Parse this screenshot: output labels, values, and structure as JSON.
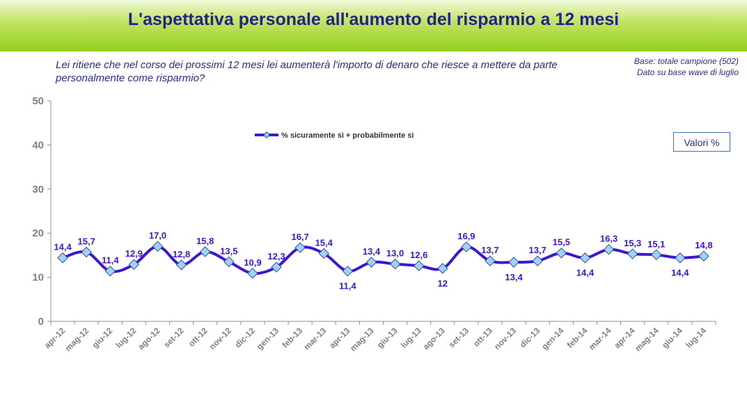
{
  "header": {
    "title": "L'aspettativa personale all'aumento del risparmio a 12 mesi"
  },
  "question": "Lei ritiene che nel corso dei prossimi 12 mesi lei aumenterà l'importo di denaro che riesce a mettere da parte personalmente come risparmio?",
  "base": {
    "line1": "Base: totale campione (502)",
    "line2": "Dato su base wave di luglio"
  },
  "valori_label": "Valori %",
  "colors": {
    "line": "#3a16d6",
    "marker_fill": "#9fd3f5",
    "marker_stroke": "#2d4f9e",
    "header_green": "#96cf1d",
    "title_blue": "#26218f"
  },
  "chart_data": {
    "type": "line",
    "ylim": [
      0,
      50
    ],
    "yticks": [
      "0",
      "10",
      "20",
      "30",
      "40",
      "50"
    ],
    "grid": false,
    "legend_position": "top-center",
    "categories": [
      "apr-12",
      "mag-12",
      "giu-12",
      "lug-12",
      "ago-12",
      "set-12",
      "ott-12",
      "nov-12",
      "dic-12",
      "gen-13",
      "feb-13",
      "mar-13",
      "apr-13",
      "mag-13",
      "giu-13",
      "lug-13",
      "ago-13",
      "set-13",
      "ott-13",
      "nov-13",
      "dic-13",
      "gen-14",
      "feb-14",
      "mar-14",
      "apr-14",
      "mag-14",
      "giu-14",
      "lug-14"
    ],
    "series": [
      {
        "name": "% sicuramente sì + probabilmente sì",
        "values": [
          14.4,
          15.7,
          11.4,
          12.9,
          17.0,
          12.8,
          15.8,
          13.5,
          10.9,
          12.3,
          16.7,
          15.4,
          11.4,
          13.4,
          13.0,
          12.6,
          12.0,
          16.9,
          13.7,
          13.4,
          13.7,
          15.5,
          14.4,
          16.3,
          15.3,
          15.1,
          14.4,
          14.8
        ],
        "labels": [
          "14,4",
          "15,7",
          "11,4",
          "12,9",
          "17,0",
          "12,8",
          "15,8",
          "13,5",
          "10,9",
          "12,3",
          "16,7",
          "15,4",
          "11,4",
          "13,4",
          "13,0",
          "12,6",
          "12",
          "16,9",
          "13,7",
          "13,4",
          "13,7",
          "15,5",
          "14,4",
          "16,3",
          "15,3",
          "15,1",
          "14,4",
          "14,8"
        ]
      }
    ]
  }
}
